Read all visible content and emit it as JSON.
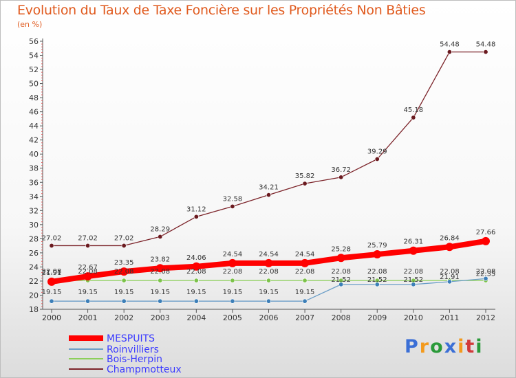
{
  "chart_data": {
    "type": "line",
    "title": "Evolution du Taux de Taxe Foncière sur les Propriétés Non Bâties",
    "ylabel": "(en %)",
    "xlabel": "",
    "categories": [
      "2000",
      "2001",
      "2002",
      "2003",
      "2004",
      "2005",
      "2006",
      "2007",
      "2008",
      "2009",
      "2010",
      "2011",
      "2012"
    ],
    "ylim": [
      18,
      56
    ],
    "ytick_step": 2,
    "grid": false,
    "legend_position": "bottom-left",
    "series": [
      {
        "name": "Champmotteux",
        "color": "#7b2228",
        "point_color": "#6a1a1f",
        "values": [
          27.02,
          27.02,
          27.02,
          28.29,
          31.12,
          32.58,
          34.21,
          35.82,
          36.72,
          39.29,
          45.18,
          54.48,
          54.48
        ],
        "labels": [
          "27.02",
          "27.02",
          "27.02",
          "28.29",
          "31.12",
          "32.58",
          "34.21",
          "35.82",
          "36.72",
          "39.29",
          "45.18",
          "54.48",
          "54.48"
        ]
      },
      {
        "name": "Bois-Herpin",
        "color": "#8ccf5a",
        "point_color": "#7cc24a",
        "values": [
          22.08,
          22.08,
          22.08,
          22.08,
          22.08,
          22.08,
          22.08,
          22.08,
          22.08,
          22.08,
          22.08,
          22.08,
          22.08
        ],
        "labels": [
          "22.08",
          "22.08",
          "22.08",
          "22.08",
          "22.08",
          "22.08",
          "22.08",
          "22.08",
          "22.08",
          "22.08",
          "22.08",
          "22.08",
          "22.08"
        ]
      },
      {
        "name": "Roinvilliers",
        "color": "#6a9dc7",
        "point_color": "#3d7fb8",
        "values": [
          19.15,
          19.15,
          19.15,
          19.15,
          19.15,
          19.15,
          19.15,
          19.15,
          21.52,
          21.52,
          21.52,
          21.91,
          22.35
        ],
        "labels": [
          "19.15",
          "19.15",
          "19.15",
          "19.15",
          "19.15",
          "19.15",
          "19.15",
          "19.15",
          "21.52",
          "21.52",
          "21.52",
          "21.91",
          "22.35"
        ]
      },
      {
        "name": "MESPUITS",
        "color": "#ff0000",
        "point_color": "#ff0000",
        "values": [
          21.91,
          22.67,
          23.35,
          23.82,
          24.06,
          24.54,
          24.54,
          24.54,
          25.28,
          25.79,
          26.31,
          26.84,
          27.66
        ],
        "labels": [
          "21.91",
          "22.67",
          "23.35",
          "23.82",
          "24.06",
          "24.54",
          "24.54",
          "24.54",
          "25.28",
          "25.79",
          "26.31",
          "26.84",
          "27.66"
        ]
      }
    ],
    "legend_order": [
      "MESPUITS",
      "Roinvilliers",
      "Bois-Herpin",
      "Champmotteux"
    ],
    "legend_text_color": "#3a3aff"
  },
  "branding": {
    "logo_text": "Proxiti",
    "logo_letters": [
      {
        "ch": "P",
        "color": "#3b6fd6"
      },
      {
        "ch": "r",
        "color": "#f39a1d"
      },
      {
        "ch": "o",
        "color": "#2a9a3a"
      },
      {
        "ch": "x",
        "color": "#3b6fd6"
      },
      {
        "ch": "i",
        "color": "#f39a1d"
      },
      {
        "ch": "t",
        "color": "#d13a3a"
      },
      {
        "ch": "i",
        "color": "#2a9a3a"
      }
    ]
  }
}
